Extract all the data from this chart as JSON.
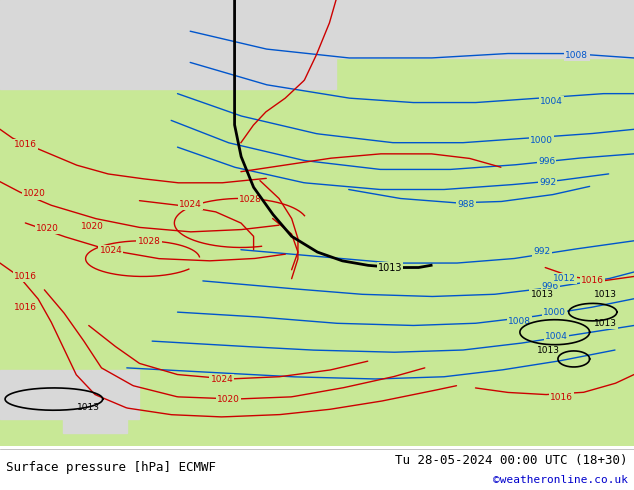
{
  "title_left": "Surface pressure [hPa] ECMWF",
  "title_right": "Tu 28-05-2024 00:00 UTC (18+30)",
  "credit": "©weatheronline.co.uk",
  "bg_green": "#c8e896",
  "bg_grey": "#d8d8d8",
  "blue": "#0055cc",
  "red": "#cc0000",
  "black": "#000000",
  "title_font_size": 9,
  "credit_font_size": 8,
  "figsize": [
    6.34,
    4.9
  ],
  "dpi": 100
}
